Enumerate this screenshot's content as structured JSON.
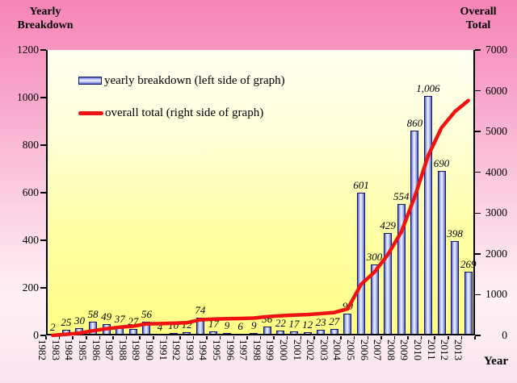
{
  "titles": {
    "left_axis_line1": "Yearly",
    "left_axis_line2": "Breakdown",
    "right_axis_line1": "Overall",
    "right_axis_line2": "Total",
    "x_axis": "Year"
  },
  "legend": [
    {
      "label": "yearly breakdown (left side of graph)",
      "swatch": "bar-gradient"
    },
    {
      "label": "overall total (right side of graph)",
      "swatch": "red-line"
    }
  ],
  "chart_data": {
    "type": "bar+line",
    "categories": [
      "1982",
      "1983",
      "1984",
      "1985",
      "1986",
      "1987",
      "1988",
      "1989",
      "1990",
      "1991",
      "1992",
      "1993",
      "1994",
      "1995",
      "1996",
      "1997",
      "1998",
      "1999",
      "2000",
      "2001",
      "2002",
      "2003",
      "2004",
      "2005",
      "2006",
      "2007",
      "2008",
      "2009",
      "2010",
      "2011",
      "2012",
      "2013"
    ],
    "series": [
      {
        "name": "yearly breakdown (left side of graph)",
        "type": "bar",
        "axis": "left",
        "values": [
          2,
          25,
          30,
          58,
          49,
          37,
          27,
          56,
          4,
          10,
          12,
          74,
          17,
          9,
          6,
          9,
          36,
          22,
          17,
          12,
          23,
          27,
          90,
          601,
          300,
          429,
          554,
          860,
          1006,
          690,
          398,
          269
        ],
        "labels": [
          "2",
          "25",
          "30",
          "58",
          "49",
          "37",
          "27",
          "56",
          "4",
          "10",
          "12",
          "74",
          "17",
          "9",
          "6",
          "9",
          "36",
          "22",
          "17",
          "12",
          "23",
          "27",
          "90",
          "601",
          "300",
          "429",
          "554",
          "860",
          "1,006",
          "690",
          "398",
          "269"
        ]
      },
      {
        "name": "overall total (right side of graph)",
        "type": "line",
        "axis": "right",
        "values": [
          2,
          27,
          57,
          115,
          164,
          201,
          228,
          284,
          288,
          298,
          310,
          384,
          401,
          410,
          416,
          425,
          461,
          483,
          500,
          512,
          535,
          562,
          652,
          1253,
          1553,
          1982,
          2536,
          3396,
          4402,
          5092,
          5490,
          5759
        ]
      }
    ],
    "left_axis": {
      "title": "Yearly Breakdown",
      "min": 0,
      "max": 1200,
      "ticks": [
        0,
        200,
        400,
        600,
        800,
        1000,
        1200
      ]
    },
    "right_axis": {
      "title": "Overall Total",
      "min": 0,
      "max": 7000,
      "ticks": [
        0,
        1000,
        2000,
        3000,
        4000,
        5000,
        6000,
        7000
      ]
    },
    "xlabel": "Year",
    "grid": false,
    "legend_position": "top-left-inside"
  },
  "colors": {
    "background_top": "#f685b6",
    "background_bottom": "#f9e3ee",
    "plot_top": "#fffef2",
    "plot_bottom": "#ffff85",
    "bar_edge": "#4e5ec9",
    "bar_center": "#f2f4ff",
    "bar_border": "#14146a",
    "line": "#ee1212",
    "text": "#000000"
  }
}
